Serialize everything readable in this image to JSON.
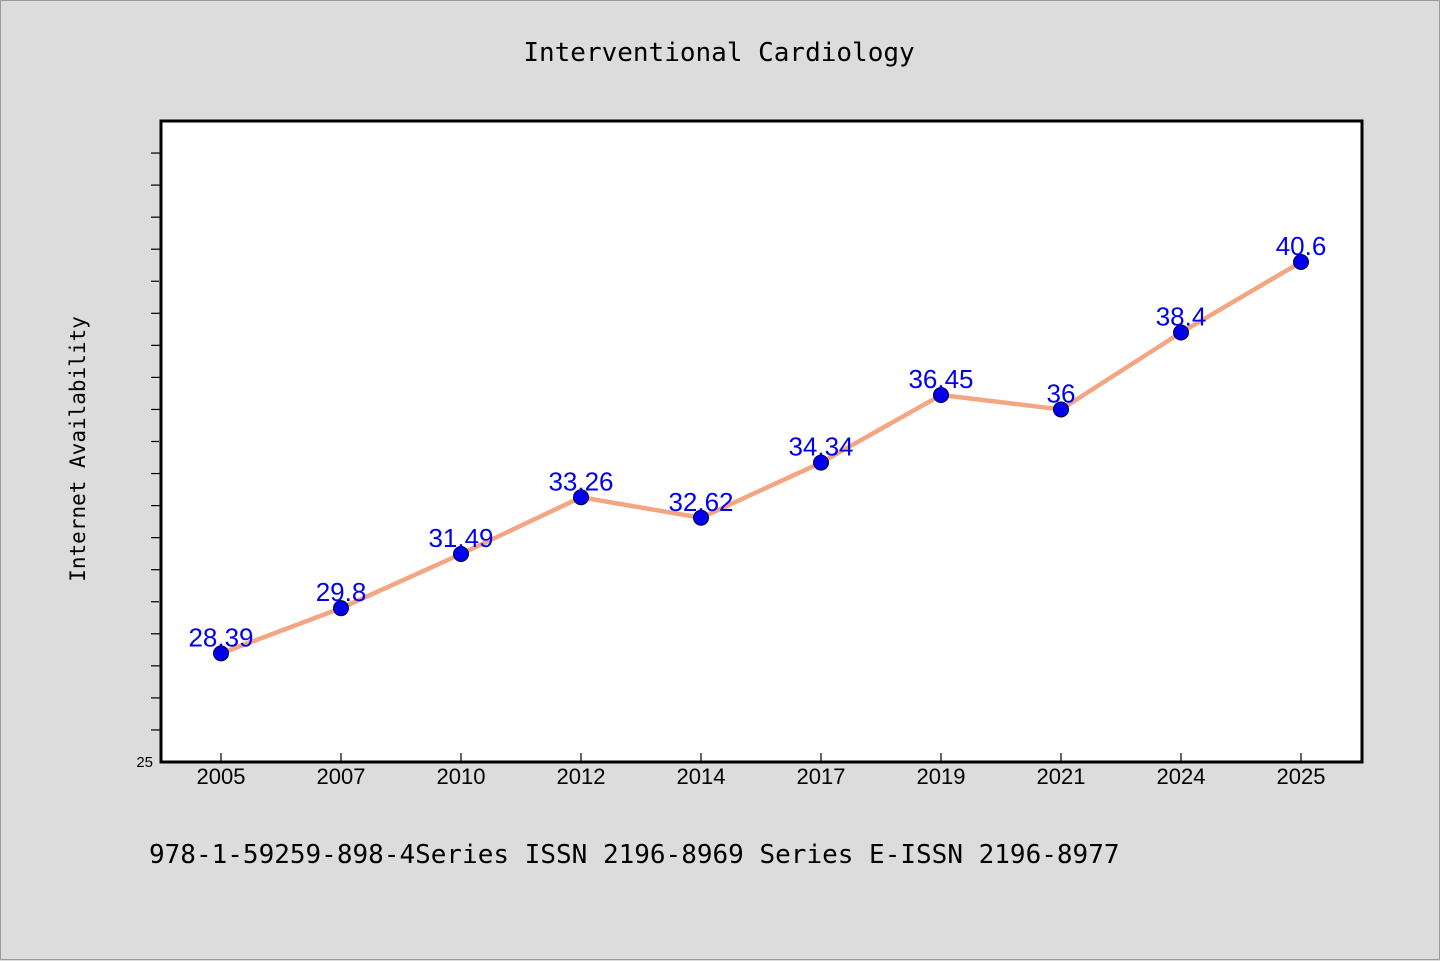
{
  "chart_data": {
    "type": "line",
    "title": "Interventional Cardiology",
    "xlabel": "",
    "ylabel": "Internet Availability",
    "categories": [
      "2005",
      "2007",
      "2010",
      "2012",
      "2014",
      "2017",
      "2019",
      "2021",
      "2024",
      "2025"
    ],
    "series": [
      {
        "values": [
          28.39,
          29.8,
          31.49,
          33.26,
          32.62,
          34.34,
          36.45,
          36,
          38.4,
          40.6
        ]
      }
    ],
    "data_labels": [
      "28.39",
      "29.8",
      "31.49",
      "33.26",
      "32.62",
      "34.34",
      "36.45",
      "36",
      "38.4",
      "40.6"
    ],
    "y_tick_labels": [
      "25"
    ],
    "ylim": [
      25,
      45
    ],
    "grid": false,
    "legend": "none",
    "colors": {
      "line": "#f4a582",
      "marker": "#0000ee",
      "label": "#0000ee",
      "plot_background": "#ffffff",
      "page_background": "#dcdcdc"
    }
  },
  "footer": {
    "text": "978-1-59259-898-4Series ISSN 2196-8969 Series E-ISSN 2196-8977"
  }
}
